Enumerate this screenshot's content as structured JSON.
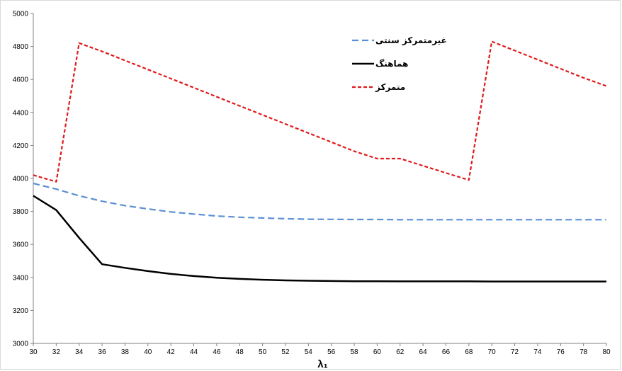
{
  "chart_data": {
    "type": "line",
    "xlabel": "λ₁",
    "ylabel": "",
    "xlim": [
      30,
      80
    ],
    "ylim": [
      3000,
      5000
    ],
    "xticks": [
      30,
      32,
      34,
      36,
      38,
      40,
      42,
      44,
      46,
      48,
      50,
      52,
      54,
      56,
      58,
      60,
      62,
      64,
      66,
      68,
      70,
      72,
      74,
      76,
      78,
      80
    ],
    "yticks": [
      3000,
      3200,
      3400,
      3600,
      3800,
      4000,
      4200,
      4400,
      4600,
      4800,
      5000
    ],
    "grid": false,
    "legend_position": "top-right",
    "series": [
      {
        "name": "غیرمتمرکز سنتی",
        "color": "#5b8fd6",
        "style": "dashed",
        "x": [
          30,
          32,
          34,
          36,
          38,
          40,
          42,
          44,
          46,
          48,
          50,
          52,
          54,
          56,
          58,
          60,
          62,
          64,
          66,
          68,
          70,
          72,
          74,
          76,
          78,
          80
        ],
        "y": [
          3970,
          3935,
          3895,
          3862,
          3835,
          3815,
          3797,
          3784,
          3772,
          3765,
          3760,
          3756,
          3753,
          3752,
          3751,
          3751,
          3750,
          3750,
          3750,
          3750,
          3750,
          3750,
          3750,
          3750,
          3750,
          3750
        ]
      },
      {
        "name": "هماهنگ",
        "color": "#000000",
        "style": "solid",
        "x": [
          30,
          32,
          34,
          36,
          38,
          40,
          42,
          44,
          46,
          48,
          50,
          52,
          54,
          56,
          58,
          60,
          62,
          64,
          66,
          68,
          70,
          72,
          74,
          76,
          78,
          80
        ],
        "y": [
          3895,
          3808,
          3640,
          3480,
          3458,
          3438,
          3421,
          3408,
          3398,
          3391,
          3386,
          3382,
          3380,
          3378,
          3377,
          3377,
          3376,
          3376,
          3376,
          3376,
          3375,
          3375,
          3375,
          3375,
          3375,
          3375
        ]
      },
      {
        "name": "متمرکز",
        "color": "#e0191b",
        "style": "dashed",
        "x": [
          30,
          32,
          34,
          36,
          38,
          40,
          42,
          44,
          46,
          48,
          50,
          52,
          54,
          56,
          58,
          60,
          62,
          64,
          66,
          68,
          70,
          72,
          74,
          76,
          78,
          80
        ],
        "y": [
          4020,
          3980,
          4820,
          4770,
          4715,
          4660,
          4605,
          4550,
          4495,
          4440,
          4385,
          4330,
          4275,
          4220,
          4165,
          4120,
          4120,
          4077,
          4033,
          3990,
          4830,
          4775,
          4720,
          4665,
          4610,
          4560
        ]
      }
    ]
  }
}
